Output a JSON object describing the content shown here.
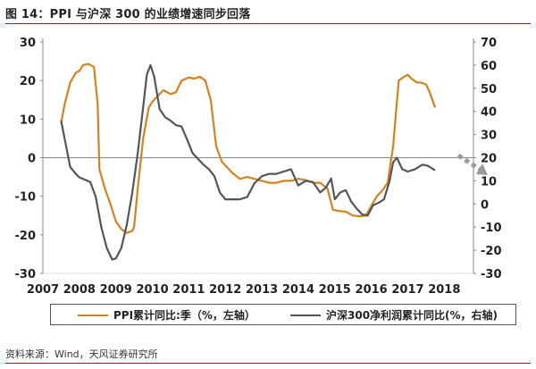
{
  "title": "图 14：PPI 与沪深 300 的业绩增速同步回落",
  "source": "资料来源：Wind，天风证券研究所",
  "chart_data": {
    "type": "line",
    "title": "图 14：PPI 与沪深 300 的业绩增速同步回落",
    "x_ticks": [
      "2007",
      "2008",
      "2009",
      "2010",
      "2011",
      "2012",
      "2013",
      "2014",
      "2015",
      "2016",
      "2017",
      "2018"
    ],
    "xlim": [
      2007,
      2018.8
    ],
    "y_left": {
      "ticks": [
        "30",
        "20",
        "10",
        "0",
        "-10",
        "-20",
        "-30"
      ],
      "ylim": [
        -30,
        30
      ]
    },
    "y_right": {
      "ticks": [
        "70",
        "60",
        "50",
        "40",
        "30",
        "20",
        "10",
        "0",
        "-10",
        "-20",
        "-30"
      ],
      "ylim": [
        -30,
        70
      ]
    },
    "series": [
      {
        "name": "PPI累计同比:季（%，左轴）",
        "axis": "left",
        "color": "#d4821f",
        "points": [
          [
            2007.5,
            9.0
          ],
          [
            2007.6,
            14.0
          ],
          [
            2007.75,
            19.5
          ],
          [
            2007.9,
            22.0
          ],
          [
            2008.0,
            22.5
          ],
          [
            2008.1,
            24.0
          ],
          [
            2008.25,
            24.3
          ],
          [
            2008.4,
            23.5
          ],
          [
            2008.5,
            14.0
          ],
          [
            2008.55,
            -3.0
          ],
          [
            2008.7,
            -8.0
          ],
          [
            2008.85,
            -12.0
          ],
          [
            2009.0,
            -16.5
          ],
          [
            2009.15,
            -18.5
          ],
          [
            2009.3,
            -19.5
          ],
          [
            2009.45,
            -19.0
          ],
          [
            2009.5,
            -18.0
          ],
          [
            2009.6,
            -8.0
          ],
          [
            2009.75,
            5.0
          ],
          [
            2009.9,
            13.0
          ],
          [
            2010.0,
            14.5
          ],
          [
            2010.15,
            16.0
          ],
          [
            2010.3,
            17.5
          ],
          [
            2010.5,
            16.5
          ],
          [
            2010.65,
            17.0
          ],
          [
            2010.8,
            20.0
          ],
          [
            2011.0,
            20.8
          ],
          [
            2011.15,
            20.5
          ],
          [
            2011.3,
            21.0
          ],
          [
            2011.45,
            20.0
          ],
          [
            2011.6,
            15.0
          ],
          [
            2011.75,
            3.0
          ],
          [
            2011.9,
            -1.0
          ],
          [
            2012.0,
            -2.0
          ],
          [
            2012.2,
            -4.0
          ],
          [
            2012.4,
            -5.5
          ],
          [
            2012.6,
            -5.0
          ],
          [
            2012.8,
            -5.5
          ],
          [
            2013.0,
            -6.0
          ],
          [
            2013.2,
            -6.5
          ],
          [
            2013.4,
            -6.5
          ],
          [
            2013.6,
            -6.0
          ],
          [
            2013.8,
            -6.0
          ],
          [
            2014.0,
            -5.5
          ],
          [
            2014.2,
            -5.8
          ],
          [
            2014.4,
            -6.5
          ],
          [
            2014.6,
            -6.5
          ],
          [
            2014.8,
            -8.0
          ],
          [
            2014.95,
            -13.5
          ],
          [
            2015.1,
            -13.8
          ],
          [
            2015.3,
            -14.0
          ],
          [
            2015.5,
            -15.0
          ],
          [
            2015.7,
            -15.2
          ],
          [
            2015.85,
            -15.0
          ],
          [
            2016.0,
            -12.5
          ],
          [
            2016.15,
            -10.0
          ],
          [
            2016.3,
            -8.5
          ],
          [
            2016.45,
            -6.5
          ],
          [
            2016.6,
            3.0
          ],
          [
            2016.75,
            20.0
          ],
          [
            2016.9,
            21.0
          ],
          [
            2017.0,
            21.5
          ],
          [
            2017.1,
            20.5
          ],
          [
            2017.25,
            19.5
          ],
          [
            2017.35,
            19.5
          ],
          [
            2017.5,
            19.0
          ],
          [
            2017.6,
            17.0
          ],
          [
            2017.75,
            13.0
          ]
        ]
      },
      {
        "name": "沪深300净利润累计同比(%，右轴)",
        "axis": "right",
        "color": "#555555",
        "points": [
          [
            2007.5,
            36.0
          ],
          [
            2007.6,
            28.0
          ],
          [
            2007.75,
            16.0
          ],
          [
            2007.9,
            13.0
          ],
          [
            2008.0,
            11.5
          ],
          [
            2008.15,
            10.5
          ],
          [
            2008.3,
            9.5
          ],
          [
            2008.45,
            3.0
          ],
          [
            2008.6,
            -10.0
          ],
          [
            2008.75,
            -19.0
          ],
          [
            2008.9,
            -24.0
          ],
          [
            2009.0,
            -23.5
          ],
          [
            2009.15,
            -19.0
          ],
          [
            2009.3,
            -9.0
          ],
          [
            2009.45,
            5.0
          ],
          [
            2009.6,
            22.0
          ],
          [
            2009.75,
            42.0
          ],
          [
            2009.85,
            56.0
          ],
          [
            2009.95,
            60.0
          ],
          [
            2010.05,
            55.0
          ],
          [
            2010.2,
            41.0
          ],
          [
            2010.35,
            37.5
          ],
          [
            2010.5,
            36.0
          ],
          [
            2010.65,
            34.0
          ],
          [
            2010.8,
            33.5
          ],
          [
            2010.95,
            28.0
          ],
          [
            2011.1,
            22.0
          ],
          [
            2011.25,
            19.5
          ],
          [
            2011.4,
            17.0
          ],
          [
            2011.55,
            15.0
          ],
          [
            2011.7,
            12.0
          ],
          [
            2011.85,
            5.0
          ],
          [
            2012.0,
            2.0
          ],
          [
            2012.2,
            2.0
          ],
          [
            2012.4,
            2.0
          ],
          [
            2012.6,
            3.0
          ],
          [
            2012.8,
            9.0
          ],
          [
            2013.0,
            12.0
          ],
          [
            2013.2,
            13.0
          ],
          [
            2013.4,
            13.0
          ],
          [
            2013.6,
            14.0
          ],
          [
            2013.8,
            15.0
          ],
          [
            2014.0,
            8.0
          ],
          [
            2014.2,
            10.0
          ],
          [
            2014.4,
            9.5
          ],
          [
            2014.6,
            5.0
          ],
          [
            2014.75,
            7.0
          ],
          [
            2014.9,
            11.0
          ],
          [
            2015.0,
            2.0
          ],
          [
            2015.15,
            5.0
          ],
          [
            2015.3,
            6.0
          ],
          [
            2015.45,
            1.0
          ],
          [
            2015.6,
            -2.0
          ],
          [
            2015.75,
            -4.5
          ],
          [
            2015.9,
            -5.0
          ],
          [
            2016.05,
            -0.5
          ],
          [
            2016.2,
            0.5
          ],
          [
            2016.35,
            2.0
          ],
          [
            2016.5,
            10.0
          ],
          [
            2016.6,
            18.0
          ],
          [
            2016.7,
            20.0
          ],
          [
            2016.85,
            15.0
          ],
          [
            2017.0,
            14.0
          ],
          [
            2017.2,
            15.0
          ],
          [
            2017.4,
            17.0
          ],
          [
            2017.55,
            16.5
          ],
          [
            2017.75,
            14.5
          ]
        ]
      }
    ],
    "annotation": "dashed-arrow-down-right",
    "legend_position": "bottom"
  }
}
